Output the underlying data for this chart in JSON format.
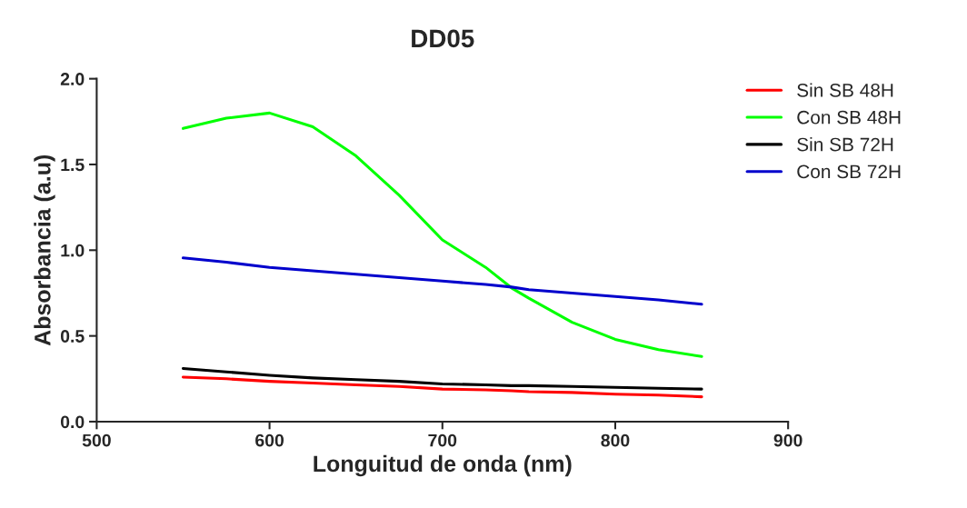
{
  "chart_data": {
    "type": "line",
    "title": "DD05",
    "xlabel": "Longuitud de onda (nm)",
    "ylabel": "Absorbancia (a.u)",
    "x": [
      550,
      575,
      600,
      625,
      650,
      675,
      700,
      725,
      740,
      750,
      775,
      800,
      825,
      850
    ],
    "series": [
      {
        "name": "Sin SB 48H",
        "color": "#ff0000",
        "values": [
          0.26,
          0.25,
          0.235,
          0.225,
          0.215,
          0.205,
          0.19,
          0.185,
          0.18,
          0.175,
          0.17,
          0.16,
          0.155,
          0.145
        ]
      },
      {
        "name": "Con SB 48H",
        "color": "#00ff00",
        "values": [
          1.71,
          1.77,
          1.8,
          1.72,
          1.55,
          1.32,
          1.06,
          0.9,
          0.78,
          0.72,
          0.58,
          0.48,
          0.42,
          0.38
        ]
      },
      {
        "name": "Sin SB 72H",
        "color": "#000000",
        "values": [
          0.31,
          0.29,
          0.27,
          0.255,
          0.245,
          0.235,
          0.22,
          0.215,
          0.21,
          0.21,
          0.205,
          0.2,
          0.195,
          0.19
        ]
      },
      {
        "name": "Con SB 72H",
        "color": "#0000cc",
        "values": [
          0.955,
          0.93,
          0.9,
          0.88,
          0.86,
          0.84,
          0.82,
          0.8,
          0.785,
          0.77,
          0.75,
          0.73,
          0.71,
          0.685
        ]
      }
    ],
    "xlim": [
      500,
      900
    ],
    "xticks": [
      500,
      600,
      700,
      800,
      900
    ],
    "ylim": [
      0,
      2
    ],
    "yticks": [
      {
        "value": 0,
        "label": "0.0"
      },
      {
        "value": 0.5,
        "label": "0.5"
      },
      {
        "value": 1,
        "label": "1.0"
      },
      {
        "value": 1.5,
        "label": "1.5"
      },
      {
        "value": 2,
        "label": "2.0"
      }
    ],
    "legend": "right",
    "grid": false,
    "marker": "none",
    "line_style": "solid"
  }
}
